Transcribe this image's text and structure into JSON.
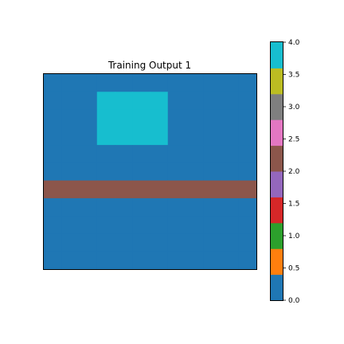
{
  "chart_data": {
    "type": "heatmap",
    "title": "Training Output 1",
    "grid": [
      [
        0,
        0,
        0,
        0,
        0,
        0,
        0,
        0,
        0,
        0,
        0,
        0
      ],
      [
        0,
        0,
        0,
        4,
        4,
        4,
        4,
        0,
        0,
        0,
        0,
        0
      ],
      [
        0,
        0,
        0,
        4,
        4,
        4,
        4,
        0,
        0,
        0,
        0,
        0
      ],
      [
        0,
        0,
        0,
        4,
        4,
        4,
        4,
        0,
        0,
        0,
        0,
        0
      ],
      [
        0,
        0,
        0,
        0,
        0,
        0,
        0,
        0,
        0,
        0,
        0,
        0
      ],
      [
        0,
        0,
        0,
        0,
        0,
        0,
        0,
        0,
        0,
        0,
        0,
        0
      ],
      [
        2,
        2,
        2,
        2,
        2,
        2,
        2,
        2,
        2,
        2,
        2,
        2
      ],
      [
        0,
        0,
        0,
        0,
        0,
        0,
        0,
        0,
        0,
        0,
        0,
        0
      ],
      [
        0,
        0,
        0,
        0,
        0,
        0,
        0,
        0,
        0,
        0,
        0,
        0
      ],
      [
        0,
        0,
        0,
        0,
        0,
        0,
        0,
        0,
        0,
        0,
        0,
        0
      ],
      [
        0,
        0,
        0,
        0,
        0,
        0,
        0,
        0,
        0,
        0,
        0,
        0
      ]
    ],
    "value_range": [
      0,
      4
    ],
    "colorbar": {
      "ticks": [
        "0.0",
        "0.5",
        "1.0",
        "1.5",
        "2.0",
        "2.5",
        "3.0",
        "3.5",
        "4.0"
      ],
      "colors": [
        "#1f77b4",
        "#ff7f0e",
        "#2ca02c",
        "#d62728",
        "#9467bd",
        "#8c564b",
        "#e377c2",
        "#7f7f7f",
        "#bcbd22",
        "#17becf"
      ]
    },
    "value_colors": {
      "0": "#1f77b4",
      "2": "#8c564b",
      "4": "#17becf"
    },
    "grid_lines": false
  }
}
